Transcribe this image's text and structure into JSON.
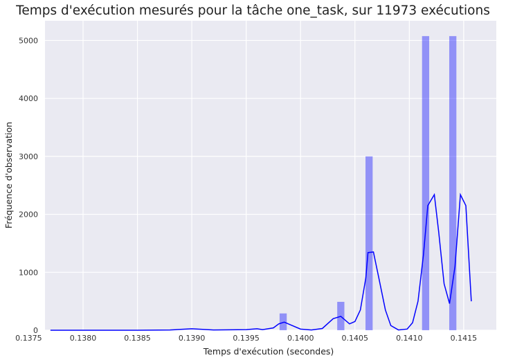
{
  "chart_data": {
    "type": "bar",
    "title": "Temps d'exécution mesurés pour la tâche one_task, sur 11973 exécutions",
    "xlabel": "Temps d'exécution (secondes)",
    "ylabel": "Fréquence d'observation",
    "xlim": [
      0.13765,
      0.1418
    ],
    "ylim": [
      0,
      5340
    ],
    "xticks": [
      "0.1375",
      "0.1380",
      "0.1385",
      "0.1390",
      "0.1395",
      "0.1400",
      "0.1405",
      "0.1410",
      "0.1415"
    ],
    "yticks": [
      "0",
      "1000",
      "2000",
      "3000",
      "4000",
      "5000"
    ],
    "grid": true,
    "bar_color": "#0000ff",
    "line_color": "#0000ff",
    "background_color": "#eaeaf2",
    "histogram": {
      "bin_width": 6.58e-05,
      "bars": [
        {
          "x": 0.13984,
          "value": 290
        },
        {
          "x": 0.14037,
          "value": 490
        },
        {
          "x": 0.14063,
          "value": 3000
        },
        {
          "x": 0.14115,
          "value": 5075
        },
        {
          "x": 0.1414,
          "value": 5075
        }
      ]
    },
    "density_curve": {
      "x": [
        0.1377,
        0.138,
        0.1385,
        0.1388,
        0.139,
        0.1391,
        0.1392,
        0.1395,
        0.1396,
        0.13965,
        0.13975,
        0.1398,
        0.13985,
        0.1399,
        0.14,
        0.1401,
        0.1402,
        0.1403,
        0.14037,
        0.14045,
        0.1405,
        0.14055,
        0.1406,
        0.14062,
        0.14067,
        0.14072,
        0.14078,
        0.14083,
        0.1409,
        0.14098,
        0.14103,
        0.14108,
        0.14113,
        0.14117,
        0.14123,
        0.14127,
        0.14132,
        0.14137,
        0.14142,
        0.14147,
        0.14152,
        0.14157
      ],
      "y": [
        0,
        0,
        0,
        5,
        25,
        15,
        5,
        10,
        25,
        10,
        40,
        110,
        140,
        100,
        20,
        5,
        30,
        200,
        240,
        110,
        150,
        350,
        900,
        1340,
        1350,
        900,
        350,
        80,
        5,
        20,
        130,
        500,
        1300,
        2150,
        2340,
        1700,
        800,
        460,
        1100,
        2340,
        2150,
        500
      ]
    }
  }
}
